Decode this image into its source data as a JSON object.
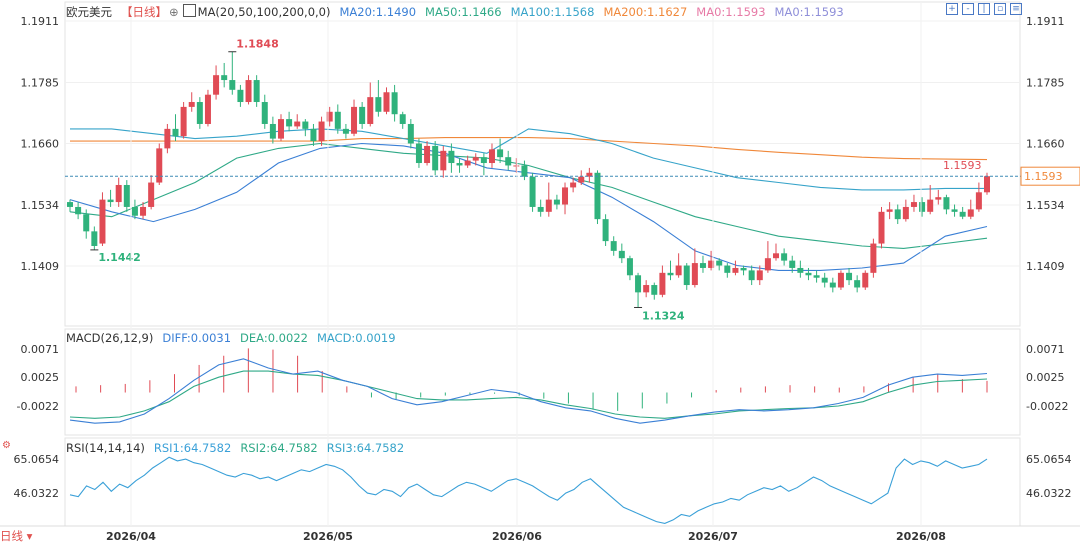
{
  "header": {
    "symbol": "欧元美元",
    "period": "【日线】",
    "settings_icon": "gear-icon",
    "ma_label": "MA(20,50,100,200,0,0)",
    "ma20": "MA20:1.1490",
    "ma50": "MA50:1.1466",
    "ma100": "MA100:1.1568",
    "ma200": "MA200:1.1627",
    "ma0a": "MA0:1.1593",
    "ma0b": "MA0:1.1593"
  },
  "macd_header": {
    "label": "MACD(26,12,9)",
    "diff": "DIFF:0.0031",
    "dea": "DEA:0.0022",
    "macd": "MACD:0.0019"
  },
  "rsi_header": {
    "label": "RSI(14,14,14)",
    "rsi1": "RSI1:64.7582",
    "rsi2": "RSI2:64.7582",
    "rsi3": "RSI3:64.7582"
  },
  "footer": {
    "period_button": "日线"
  },
  "colors": {
    "up": "#e04b55",
    "down": "#2fb27c",
    "ma20": "#3a7fd5",
    "ma50": "#2fa987",
    "ma100": "#36a3c9",
    "ma200": "#f0883a",
    "price_line": "#3e8bb5",
    "macd_diff": "#3a7fd5",
    "macd_dea": "#2fa987",
    "rsi": "#3aa0d8"
  },
  "toolbar_icons": [
    "zoom-in-icon",
    "zoom-out-icon",
    "bar-layout-icon",
    "fit-icon",
    "menu-icon"
  ],
  "chart_data": [
    {
      "type": "candlestick",
      "title": "欧元美元 日线",
      "x_ticks": [
        "2026/04",
        "2026/05",
        "2026/06",
        "2026/07",
        "2026/08"
      ],
      "y_ticks": [
        "1.1911",
        "1.1785",
        "1.1660",
        "1.1534",
        "1.1409"
      ],
      "ylim": [
        1.1286,
        1.1935
      ],
      "current_price": "1.1593",
      "high_label": "1.1848",
      "low_label_1": "1.1442",
      "low_label_2": "1.1324",
      "last_marker": "1.1593",
      "candles": [
        [
          1.154,
          1.153,
          1.1545,
          1.152
        ],
        [
          1.153,
          1.1515,
          1.154,
          1.1505
        ],
        [
          1.1515,
          1.148,
          1.1525,
          1.1465
        ],
        [
          1.148,
          1.145,
          1.149,
          1.1442
        ],
        [
          1.1455,
          1.1545,
          1.156,
          1.145
        ],
        [
          1.1545,
          1.154,
          1.1565,
          1.153
        ],
        [
          1.154,
          1.1575,
          1.159,
          1.153
        ],
        [
          1.1575,
          1.153,
          1.1585,
          1.152
        ],
        [
          1.153,
          1.1512,
          1.1545,
          1.1505
        ],
        [
          1.1512,
          1.153,
          1.154,
          1.1505
        ],
        [
          1.153,
          1.158,
          1.1595,
          1.1525
        ],
        [
          1.158,
          1.165,
          1.166,
          1.1575
        ],
        [
          1.165,
          1.169,
          1.17,
          1.164
        ],
        [
          1.169,
          1.1675,
          1.172,
          1.1665
        ],
        [
          1.1675,
          1.1735,
          1.1745,
          1.167
        ],
        [
          1.1735,
          1.1745,
          1.1765,
          1.1725
        ],
        [
          1.1745,
          1.17,
          1.1755,
          1.169
        ],
        [
          1.17,
          1.176,
          1.177,
          1.1695
        ],
        [
          1.176,
          1.18,
          1.182,
          1.175
        ],
        [
          1.18,
          1.179,
          1.1825,
          1.1775
        ],
        [
          1.179,
          1.177,
          1.1848,
          1.176
        ],
        [
          1.177,
          1.1745,
          1.178,
          1.1735
        ],
        [
          1.1745,
          1.179,
          1.18,
          1.174
        ],
        [
          1.179,
          1.1745,
          1.18,
          1.1735
        ],
        [
          1.1745,
          1.17,
          1.176,
          1.169
        ],
        [
          1.17,
          1.167,
          1.1715,
          1.166
        ],
        [
          1.167,
          1.171,
          1.172,
          1.1665
        ],
        [
          1.171,
          1.1695,
          1.1725,
          1.1685
        ],
        [
          1.1695,
          1.1705,
          1.172,
          1.169
        ],
        [
          1.1705,
          1.169,
          1.171,
          1.1675
        ],
        [
          1.169,
          1.1665,
          1.17,
          1.1655
        ],
        [
          1.1665,
          1.1705,
          1.1715,
          1.1655
        ],
        [
          1.1705,
          1.1725,
          1.1735,
          1.1695
        ],
        [
          1.1725,
          1.169,
          1.174,
          1.168
        ],
        [
          1.169,
          1.168,
          1.17,
          1.167
        ],
        [
          1.168,
          1.1735,
          1.175,
          1.1675
        ],
        [
          1.1735,
          1.17,
          1.1745,
          1.169
        ],
        [
          1.17,
          1.1755,
          1.1785,
          1.1695
        ],
        [
          1.1755,
          1.1725,
          1.179,
          1.1715
        ],
        [
          1.1725,
          1.1765,
          1.1775,
          1.172
        ],
        [
          1.1765,
          1.172,
          1.178,
          1.1705
        ],
        [
          1.172,
          1.17,
          1.1725,
          1.169
        ],
        [
          1.17,
          1.166,
          1.171,
          1.165
        ],
        [
          1.166,
          1.162,
          1.167,
          1.161
        ],
        [
          1.162,
          1.1655,
          1.1665,
          1.1615
        ],
        [
          1.1655,
          1.1605,
          1.1665,
          1.1595
        ],
        [
          1.1605,
          1.1645,
          1.1655,
          1.159
        ],
        [
          1.1645,
          1.162,
          1.166,
          1.16
        ],
        [
          1.162,
          1.1615,
          1.163,
          1.16
        ],
        [
          1.1615,
          1.1625,
          1.1635,
          1.161
        ],
        [
          1.1625,
          1.1632,
          1.164,
          1.1615
        ],
        [
          1.1632,
          1.162,
          1.164,
          1.1595
        ],
        [
          1.162,
          1.1648,
          1.166,
          1.161
        ],
        [
          1.1648,
          1.1632,
          1.167,
          1.162
        ],
        [
          1.1632,
          1.1615,
          1.1645,
          1.1605
        ],
        [
          1.1615,
          1.1615,
          1.163,
          1.16
        ],
        [
          1.1615,
          1.1592,
          1.1625,
          1.1585
        ],
        [
          1.1592,
          1.153,
          1.16,
          1.152
        ],
        [
          1.153,
          1.152,
          1.1545,
          1.151
        ],
        [
          1.152,
          1.1545,
          1.158,
          1.151
        ],
        [
          1.1545,
          1.1535,
          1.1555,
          1.1525
        ],
        [
          1.1535,
          1.157,
          1.158,
          1.1515
        ],
        [
          1.157,
          1.158,
          1.159,
          1.156
        ],
        [
          1.158,
          1.1592,
          1.1605,
          1.1575
        ],
        [
          1.1592,
          1.16,
          1.161,
          1.158
        ],
        [
          1.16,
          1.1505,
          1.1605,
          1.1495
        ],
        [
          1.1505,
          1.146,
          1.1515,
          1.145
        ],
        [
          1.146,
          1.144,
          1.147,
          1.143
        ],
        [
          1.144,
          1.1425,
          1.1455,
          1.1415
        ],
        [
          1.1425,
          1.139,
          1.143,
          1.138
        ],
        [
          1.139,
          1.1355,
          1.1395,
          1.1324
        ],
        [
          1.1355,
          1.137,
          1.138,
          1.1345
        ],
        [
          1.137,
          1.135,
          1.1375,
          1.134
        ],
        [
          1.135,
          1.1395,
          1.141,
          1.1345
        ],
        [
          1.1395,
          1.139,
          1.142,
          1.138
        ],
        [
          1.139,
          1.141,
          1.1435,
          1.1385
        ],
        [
          1.141,
          1.137,
          1.1415,
          1.136
        ],
        [
          1.137,
          1.1415,
          1.1445,
          1.1365
        ],
        [
          1.1415,
          1.1405,
          1.143,
          1.1395
        ],
        [
          1.1405,
          1.142,
          1.144,
          1.14
        ],
        [
          1.142,
          1.141,
          1.1425,
          1.14
        ],
        [
          1.141,
          1.1395,
          1.1415,
          1.1385
        ],
        [
          1.1395,
          1.1405,
          1.142,
          1.139
        ],
        [
          1.1405,
          1.14,
          1.141,
          1.139
        ],
        [
          1.14,
          1.138,
          1.141,
          1.137
        ],
        [
          1.138,
          1.14,
          1.141,
          1.137
        ],
        [
          1.14,
          1.1425,
          1.146,
          1.1395
        ],
        [
          1.1425,
          1.1435,
          1.1455,
          1.142
        ],
        [
          1.1435,
          1.142,
          1.1445,
          1.141
        ],
        [
          1.142,
          1.1405,
          1.143,
          1.1395
        ],
        [
          1.1405,
          1.1395,
          1.142,
          1.1385
        ],
        [
          1.1395,
          1.139,
          1.1405,
          1.138
        ],
        [
          1.139,
          1.1385,
          1.14,
          1.1375
        ],
        [
          1.1385,
          1.1375,
          1.1395,
          1.1365
        ],
        [
          1.1375,
          1.1365,
          1.1385,
          1.1355
        ],
        [
          1.1365,
          1.1395,
          1.14,
          1.136
        ],
        [
          1.1395,
          1.138,
          1.1405,
          1.137
        ],
        [
          1.138,
          1.1365,
          1.139,
          1.1355
        ],
        [
          1.1365,
          1.1395,
          1.14,
          1.136
        ],
        [
          1.1395,
          1.1455,
          1.1465,
          1.1385
        ],
        [
          1.1455,
          1.152,
          1.153,
          1.1445
        ],
        [
          1.152,
          1.1525,
          1.154,
          1.1505
        ],
        [
          1.1525,
          1.1505,
          1.1535,
          1.1495
        ],
        [
          1.1505,
          1.153,
          1.1545,
          1.15
        ],
        [
          1.153,
          1.154,
          1.1555,
          1.152
        ],
        [
          1.154,
          1.152,
          1.155,
          1.151
        ],
        [
          1.152,
          1.1545,
          1.1575,
          1.1515
        ],
        [
          1.1545,
          1.155,
          1.1565,
          1.1535
        ],
        [
          1.155,
          1.1525,
          1.1555,
          1.1515
        ],
        [
          1.1525,
          1.152,
          1.1535,
          1.151
        ],
        [
          1.152,
          1.151,
          1.153,
          1.1505
        ],
        [
          1.151,
          1.1525,
          1.1545,
          1.1505
        ],
        [
          1.1525,
          1.156,
          1.158,
          1.152
        ],
        [
          1.156,
          1.1593,
          1.16,
          1.1555
        ]
      ],
      "ma20": [
        1.1545,
        1.152,
        1.15,
        1.1525,
        1.156,
        1.162,
        1.165,
        1.166,
        1.1655,
        1.164,
        1.161,
        1.16,
        1.159,
        1.155,
        1.15,
        1.144,
        1.141,
        1.14,
        1.14,
        1.1405,
        1.1415,
        1.147,
        1.149
      ],
      "ma50": [
        1.152,
        1.151,
        1.1545,
        1.158,
        1.163,
        1.165,
        1.166,
        1.165,
        1.164,
        1.1635,
        1.163,
        1.1615,
        1.159,
        1.157,
        1.154,
        1.151,
        1.149,
        1.147,
        1.146,
        1.145,
        1.1445,
        1.1455,
        1.1466
      ],
      "ma100": [
        1.169,
        1.169,
        1.168,
        1.167,
        1.1675,
        1.1685,
        1.169,
        1.1685,
        1.167,
        1.1655,
        1.164,
        1.169,
        1.168,
        1.166,
        1.163,
        1.161,
        1.159,
        1.158,
        1.157,
        1.1565,
        1.1565,
        1.1568,
        1.1568
      ],
      "ma200": [
        1.1665,
        1.1665,
        1.1665,
        1.1665,
        1.1665,
        1.1665,
        1.1665,
        1.167,
        1.167,
        1.1672,
        1.1672,
        1.1672,
        1.167,
        1.1665,
        1.166,
        1.1655,
        1.1648,
        1.1642,
        1.1637,
        1.1632,
        1.1629,
        1.1628,
        1.1627
      ]
    },
    {
      "type": "macd",
      "y_ticks": [
        "0.0071",
        "0.0025",
        "-0.0022"
      ],
      "ylim": [
        -0.0062,
        0.0082
      ],
      "diff": [
        -0.0045,
        -0.005,
        -0.0048,
        -0.0035,
        -0.001,
        0.002,
        0.0045,
        0.0055,
        0.004,
        0.003,
        0.0035,
        0.002,
        0.001,
        -0.001,
        -0.002,
        -0.0015,
        -0.0005,
        0.0005,
        0.0,
        -0.0015,
        -0.0025,
        -0.003,
        -0.0042,
        -0.005,
        -0.0045,
        -0.0038,
        -0.0032,
        -0.0028,
        -0.003,
        -0.0028,
        -0.0025,
        -0.0018,
        -0.0008,
        0.0012,
        0.0025,
        0.003,
        0.0028,
        0.0031
      ],
      "dea": [
        -0.004,
        -0.0042,
        -0.004,
        -0.003,
        -0.0015,
        0.001,
        0.0025,
        0.0035,
        0.0035,
        0.003,
        0.0028,
        0.002,
        0.001,
        0.0,
        -0.001,
        -0.0012,
        -0.0012,
        -0.001,
        -0.0008,
        -0.0012,
        -0.002,
        -0.0026,
        -0.0035,
        -0.004,
        -0.0042,
        -0.0038,
        -0.0035,
        -0.003,
        -0.0028,
        -0.0026,
        -0.0025,
        -0.0022,
        -0.0015,
        0.0,
        0.0012,
        0.0018,
        0.002,
        0.0022
      ],
      "hist": [
        0.001,
        0.0012,
        0.0014,
        0.002,
        0.003,
        0.0045,
        0.006,
        0.0072,
        0.007,
        0.006,
        0.0035,
        0.001,
        -0.0008,
        -0.0012,
        -0.0008,
        -0.0005,
        -0.0003,
        -0.0002,
        -0.0005,
        -0.001,
        -0.0018,
        -0.0028,
        -0.003,
        -0.0026,
        -0.0018,
        -0.0008,
        0.0004,
        0.0008,
        0.001,
        0.0012,
        0.001,
        0.0008,
        0.001,
        0.0015,
        0.0025,
        0.003,
        0.0022,
        0.0019
      ]
    },
    {
      "type": "line",
      "title": "RSI",
      "y_ticks": [
        "65.0654",
        "46.0322"
      ],
      "ylim": [
        26,
        74
      ],
      "rsi": [
        45,
        44,
        50,
        48,
        52,
        47,
        51,
        49,
        53,
        56,
        60,
        63,
        66,
        64,
        65,
        63,
        62,
        60,
        58,
        56,
        55,
        57,
        56,
        54,
        55,
        53,
        55,
        57,
        59,
        58,
        60,
        62,
        61,
        59,
        55,
        50,
        46,
        45,
        48,
        47,
        44,
        49,
        51,
        48,
        45,
        44,
        47,
        50,
        52,
        51,
        49,
        47,
        50,
        53,
        54,
        52,
        50,
        47,
        44,
        42,
        46,
        48,
        52,
        54,
        50,
        46,
        42,
        38,
        36,
        34,
        32,
        30,
        29,
        31,
        34,
        33,
        36,
        38,
        40,
        41,
        43,
        42,
        45,
        47,
        49,
        48,
        50,
        47,
        49,
        52,
        55,
        53,
        50,
        48,
        46,
        44,
        42,
        40,
        43,
        46,
        60,
        65,
        62,
        64,
        63,
        61,
        64,
        62,
        60,
        61,
        62,
        65
      ]
    }
  ]
}
